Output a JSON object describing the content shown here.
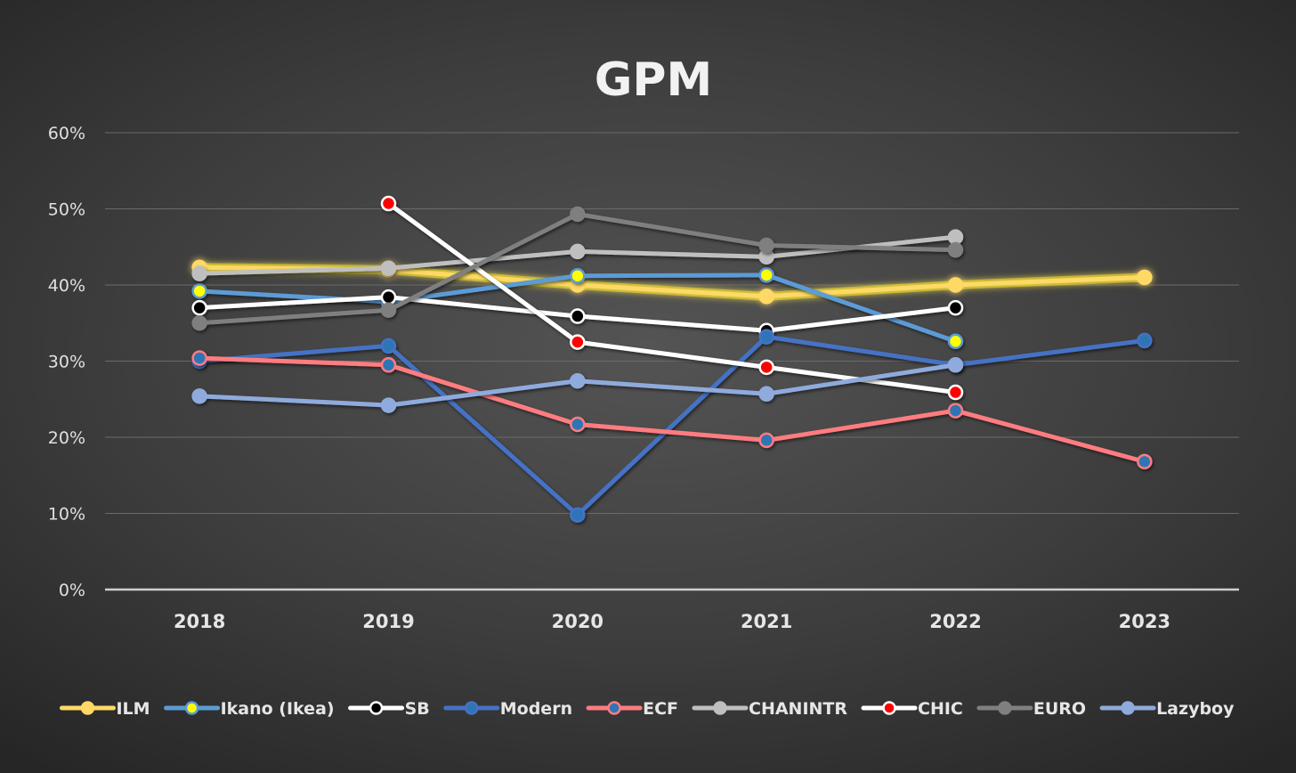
{
  "chart_data": {
    "type": "line",
    "title": "GPM",
    "xlabel": "",
    "ylabel": "",
    "categories": [
      "2018",
      "2019",
      "2020",
      "2021",
      "2022",
      "2023"
    ],
    "ylim": [
      0,
      60
    ],
    "yticks": [
      "0%",
      "10%",
      "20%",
      "30%",
      "40%",
      "50%",
      "60%"
    ],
    "grid": true,
    "legend_position": "bottom",
    "series": [
      {
        "name": "ILM",
        "color": "#ffd966",
        "marker_color": "#ffd966",
        "glow": true,
        "values": [
          42.3,
          42.0,
          40.0,
          38.5,
          40.0,
          41.0
        ]
      },
      {
        "name": "Ikano (Ikea)",
        "color": "#5b9bd5",
        "marker_color": "#ffff00",
        "values": [
          39.2,
          37.8,
          41.2,
          41.3,
          32.6,
          null
        ]
      },
      {
        "name": "SB",
        "color": "#ffffff",
        "marker_color": "#000000",
        "values": [
          37.0,
          38.4,
          35.9,
          34.0,
          37.0,
          null
        ]
      },
      {
        "name": "Modern",
        "color": "#4472c4",
        "marker_color": "#2e75b6",
        "values": [
          30.0,
          32.0,
          9.8,
          33.2,
          29.5,
          32.7
        ]
      },
      {
        "name": "ECF",
        "color": "#ff7c80",
        "marker_color": "#2e75b6",
        "values": [
          30.4,
          29.5,
          21.7,
          19.6,
          23.5,
          16.8
        ]
      },
      {
        "name": "CHANINTR",
        "color": "#bfbfbf",
        "marker_color": "#bfbfbf",
        "values": [
          41.5,
          42.2,
          44.4,
          43.7,
          46.3,
          null
        ]
      },
      {
        "name": "CHIC",
        "color": "#ffffff",
        "marker_color": "#ff0000",
        "values": [
          null,
          50.7,
          32.5,
          29.2,
          25.9,
          null
        ]
      },
      {
        "name": "EURO",
        "color": "#7f7f7f",
        "marker_color": "#7f7f7f",
        "values": [
          35.0,
          36.7,
          49.3,
          45.2,
          44.6,
          null
        ]
      },
      {
        "name": "Lazyboy",
        "color": "#8faadc",
        "marker_color": "#8faadc",
        "values": [
          25.4,
          24.2,
          27.4,
          25.7,
          29.5,
          null
        ]
      }
    ]
  }
}
